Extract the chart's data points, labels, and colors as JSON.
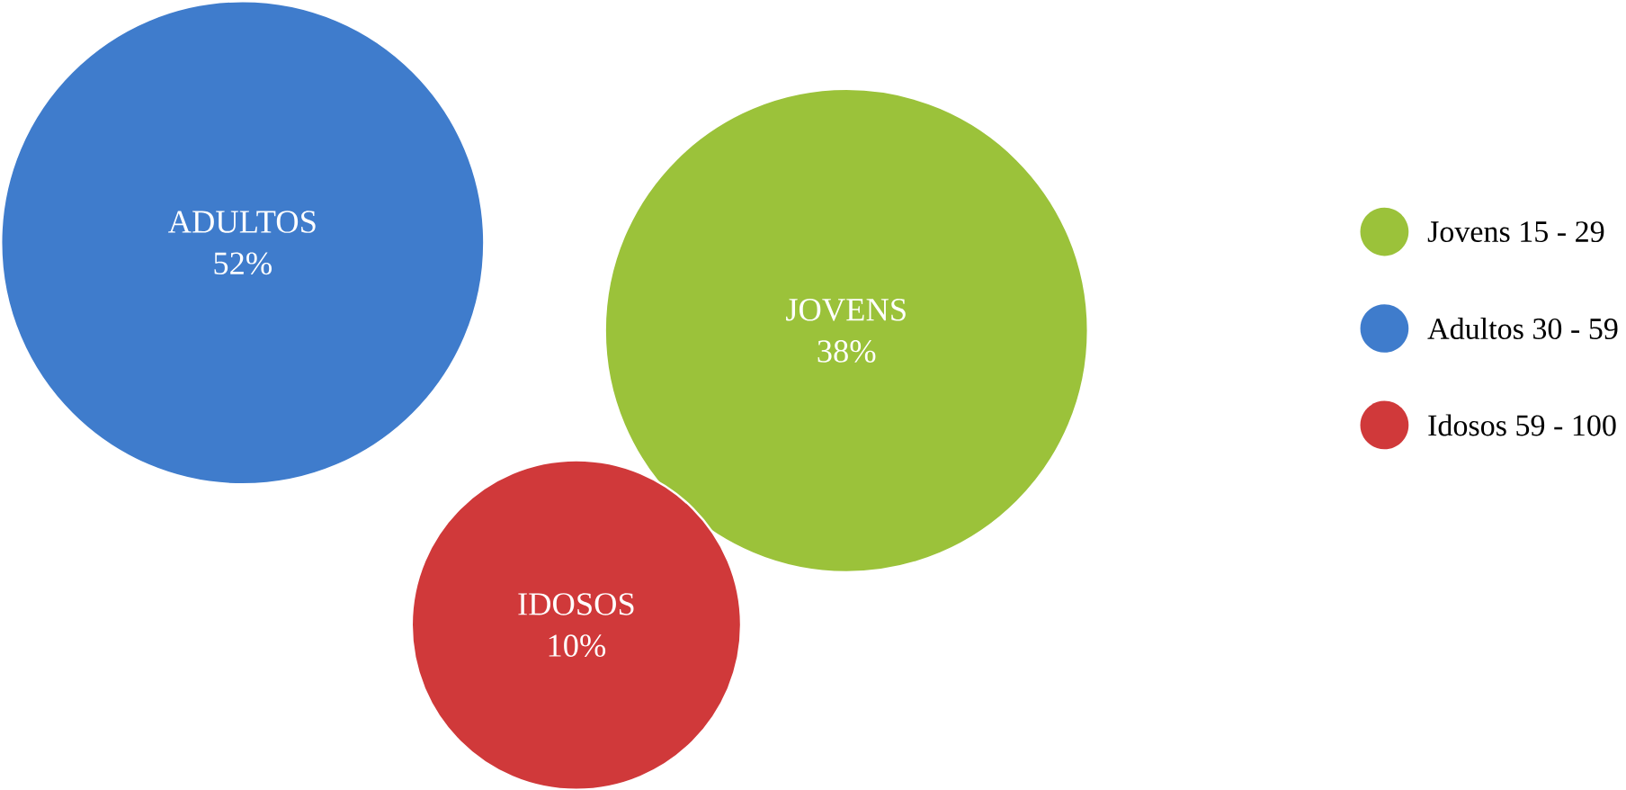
{
  "chart_data": {
    "type": "other",
    "categories": [
      "ADULTOS",
      "JOVENS",
      "IDOSOS"
    ],
    "series": [
      {
        "name": "Jovens 15 - 29",
        "color": "#9bc23a",
        "values": [
          null,
          38,
          null
        ],
        "value_labels": [
          null,
          "38%",
          null
        ]
      },
      {
        "name": "Adultos 30 - 59",
        "color": "#3f7ccc",
        "values": [
          52,
          null,
          null
        ],
        "value_labels": [
          "52%",
          null,
          null
        ]
      },
      {
        "name": "Idosos 59 - 100",
        "color": "#d0393a",
        "values": [
          null,
          null,
          10
        ],
        "value_labels": [
          null,
          null,
          "10%"
        ]
      }
    ],
    "legend": "right"
  }
}
